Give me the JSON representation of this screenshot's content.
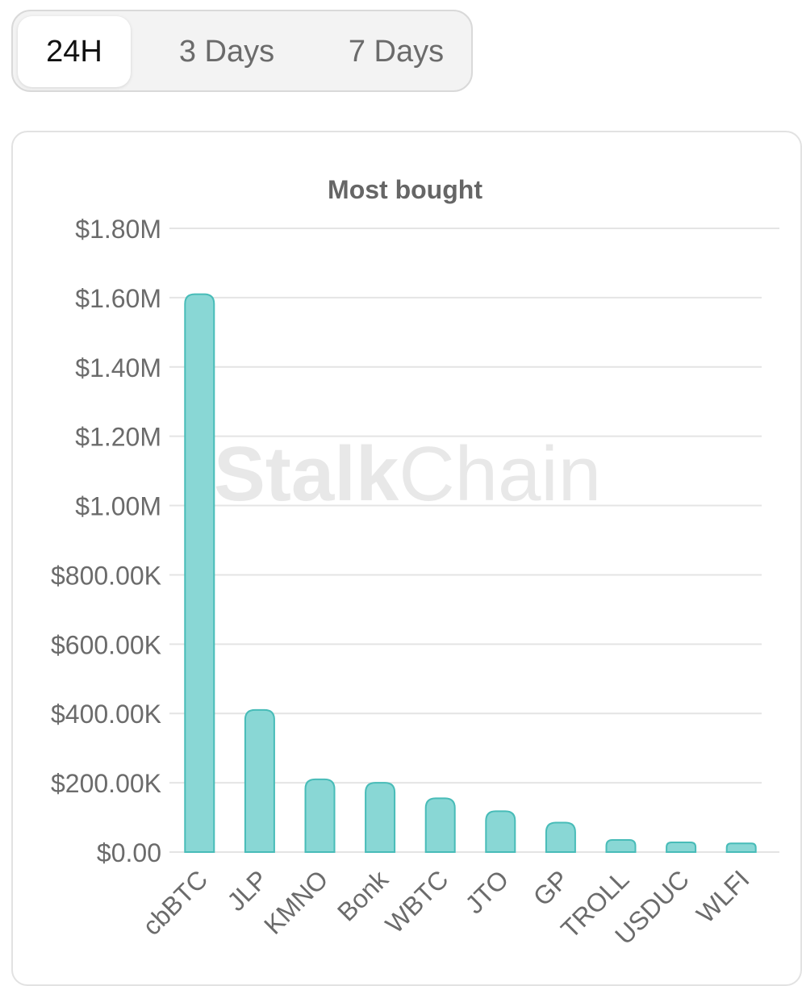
{
  "tabs": [
    {
      "label": "24H",
      "active": true
    },
    {
      "label": "3 Days",
      "active": false
    },
    {
      "label": "7 Days",
      "active": false
    }
  ],
  "watermark": {
    "bold": "Stalk",
    "light": "Chain"
  },
  "colors": {
    "bar_fill": "#89d7d5",
    "bar_stroke": "#48bcb8",
    "grid": "#e4e4e4",
    "axis_text": "#6b6b6b",
    "title_text": "#666666"
  },
  "chart_data": {
    "type": "bar",
    "title": "Most bought",
    "xlabel": "",
    "ylabel": "",
    "categories": [
      "cbBTC",
      "JLP",
      "KMNO",
      "Bonk",
      "WBTC",
      "JTO",
      "GP",
      "TROLL",
      "USDUC",
      "WLFI"
    ],
    "values": [
      1610000,
      410000,
      210000,
      200000,
      155000,
      118000,
      85000,
      35000,
      28000,
      25000
    ],
    "ylim": [
      0,
      1800000
    ],
    "yticks": [
      0,
      200000,
      400000,
      600000,
      800000,
      1000000,
      1200000,
      1400000,
      1600000,
      1800000
    ],
    "ytick_labels": [
      "$0.00",
      "$200.00K",
      "$400.00K",
      "$600.00K",
      "$800.00K",
      "$1.00M",
      "$1.20M",
      "$1.40M",
      "$1.60M",
      "$1.80M"
    ],
    "grid": true,
    "legend": "none"
  }
}
